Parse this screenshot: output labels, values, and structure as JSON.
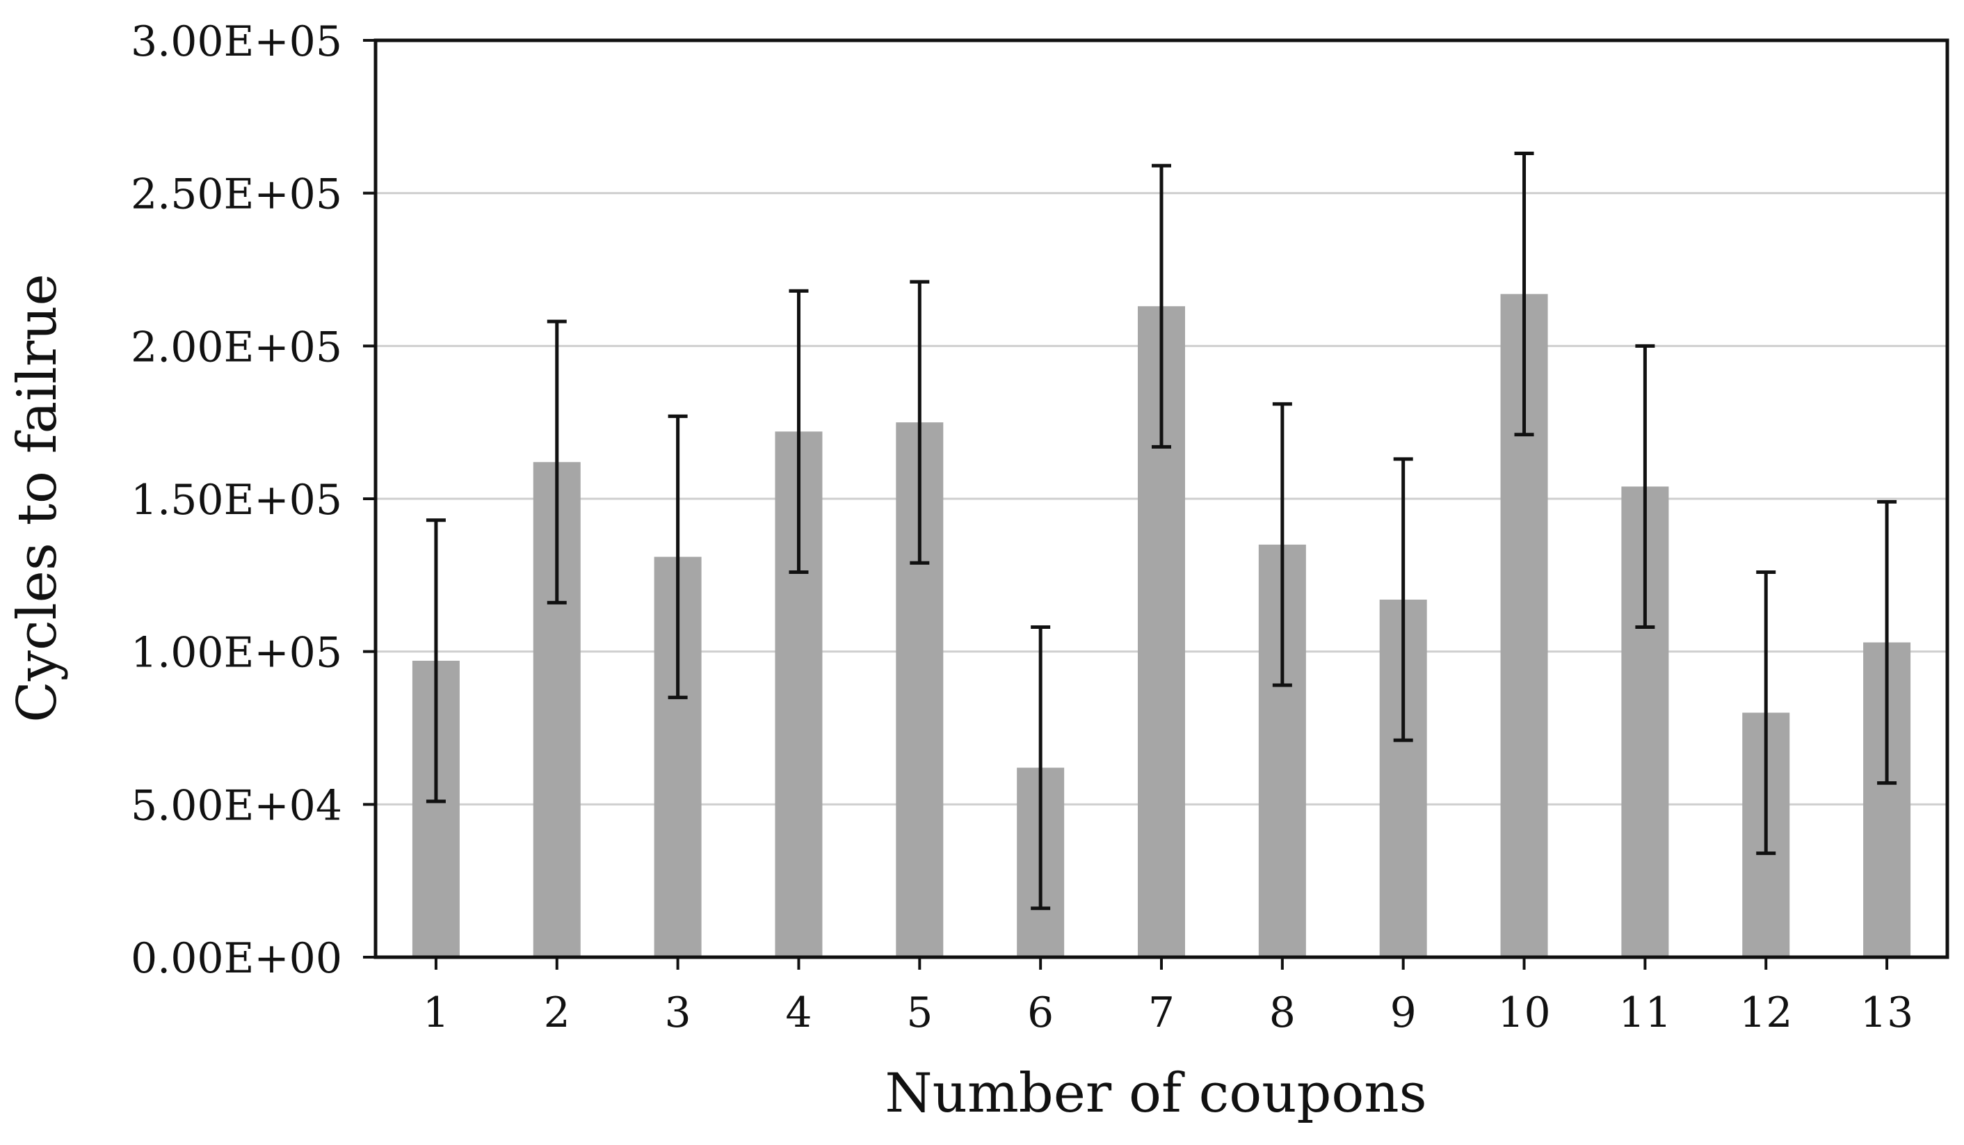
{
  "chart_data": {
    "type": "bar",
    "title": "",
    "xlabel": "Number of coupons",
    "ylabel": "Cycles to failrue",
    "categories": [
      "1",
      "2",
      "3",
      "4",
      "5",
      "6",
      "7",
      "8",
      "9",
      "10",
      "11",
      "12",
      "13"
    ],
    "values": [
      97000,
      162000,
      131000,
      172000,
      175000,
      62000,
      213000,
      135000,
      117000,
      217000,
      154000,
      80000,
      103000
    ],
    "error": [
      46000,
      46000,
      46000,
      46000,
      46000,
      46000,
      46000,
      46000,
      46000,
      46000,
      46000,
      46000,
      46000
    ],
    "ylim": [
      0,
      300000
    ],
    "yticks": [
      0,
      50000,
      100000,
      150000,
      200000,
      250000,
      300000
    ],
    "ytick_labels": [
      "0.00E+00",
      "5.00E+04",
      "1.00E+05",
      "1.50E+05",
      "2.00E+05",
      "2.50E+05",
      "3.00E+05"
    ],
    "grid": true,
    "legend": "none",
    "colors": {
      "bar": "#a6a6a6",
      "errorbar": "#111111",
      "grid": "#cfcfcf",
      "axis": "#111111"
    }
  }
}
